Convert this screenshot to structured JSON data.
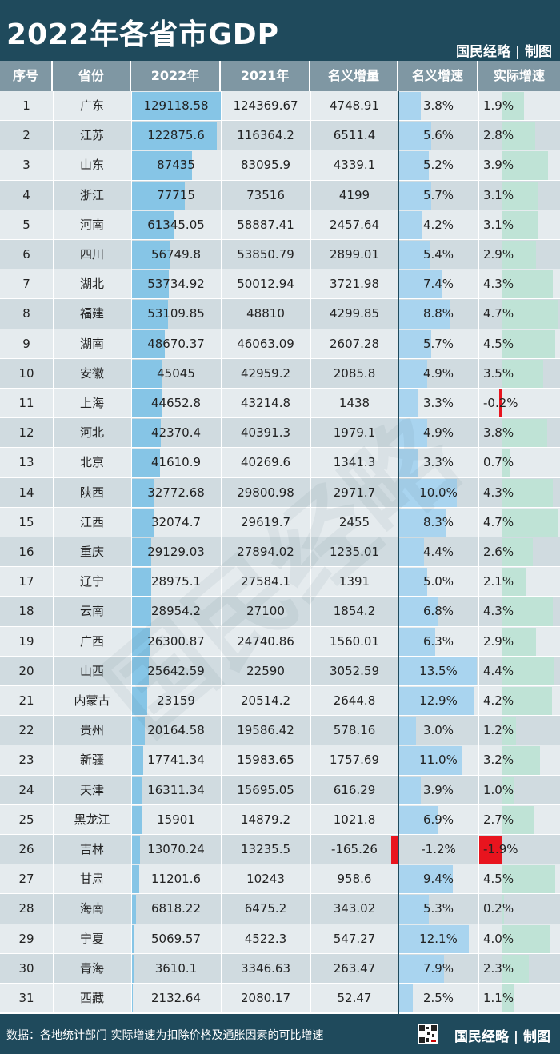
{
  "header": {
    "title": "2022年各省市GDP",
    "brand": "国民经略 | 制图"
  },
  "footer": {
    "source": "数据：各地统计部门 实际增速为扣除价格及通胀因素的可比增速",
    "brand": "国民经略 | 制图"
  },
  "watermark": "国民经略",
  "colors": {
    "header_bg": "#1f4a5c",
    "gdp_bar": "#86c5e6",
    "nominal_bar": "#a9d4ef",
    "real_bar": "#bfe3d6",
    "negative_bar": "#e8141e"
  },
  "chart_data": {
    "type": "table",
    "columns": [
      "序号",
      "省份",
      "2022年",
      "2021年",
      "名义增量",
      "名义增速",
      "实际增速"
    ],
    "rows": [
      {
        "rank": "1",
        "province": "广东",
        "gdp2022": "129118.58",
        "gdp2021": "124369.67",
        "increment": "4748.91",
        "nominal": "3.8%",
        "real": "1.9%"
      },
      {
        "rank": "2",
        "province": "江苏",
        "gdp2022": "122875.6",
        "gdp2021": "116364.2",
        "increment": "6511.4",
        "nominal": "5.6%",
        "real": "2.8%"
      },
      {
        "rank": "3",
        "province": "山东",
        "gdp2022": "87435",
        "gdp2021": "83095.9",
        "increment": "4339.1",
        "nominal": "5.2%",
        "real": "3.9%"
      },
      {
        "rank": "4",
        "province": "浙江",
        "gdp2022": "77715",
        "gdp2021": "73516",
        "increment": "4199",
        "nominal": "5.7%",
        "real": "3.1%"
      },
      {
        "rank": "5",
        "province": "河南",
        "gdp2022": "61345.05",
        "gdp2021": "58887.41",
        "increment": "2457.64",
        "nominal": "4.2%",
        "real": "3.1%"
      },
      {
        "rank": "6",
        "province": "四川",
        "gdp2022": "56749.8",
        "gdp2021": "53850.79",
        "increment": "2899.01",
        "nominal": "5.4%",
        "real": "2.9%"
      },
      {
        "rank": "7",
        "province": "湖北",
        "gdp2022": "53734.92",
        "gdp2021": "50012.94",
        "increment": "3721.98",
        "nominal": "7.4%",
        "real": "4.3%"
      },
      {
        "rank": "8",
        "province": "福建",
        "gdp2022": "53109.85",
        "gdp2021": "48810",
        "increment": "4299.85",
        "nominal": "8.8%",
        "real": "4.7%"
      },
      {
        "rank": "9",
        "province": "湖南",
        "gdp2022": "48670.37",
        "gdp2021": "46063.09",
        "increment": "2607.28",
        "nominal": "5.7%",
        "real": "4.5%"
      },
      {
        "rank": "10",
        "province": "安徽",
        "gdp2022": "45045",
        "gdp2021": "42959.2",
        "increment": "2085.8",
        "nominal": "4.9%",
        "real": "3.5%"
      },
      {
        "rank": "11",
        "province": "上海",
        "gdp2022": "44652.8",
        "gdp2021": "43214.8",
        "increment": "1438",
        "nominal": "3.3%",
        "real": "-0.2%"
      },
      {
        "rank": "12",
        "province": "河北",
        "gdp2022": "42370.4",
        "gdp2021": "40391.3",
        "increment": "1979.1",
        "nominal": "4.9%",
        "real": "3.8%"
      },
      {
        "rank": "13",
        "province": "北京",
        "gdp2022": "41610.9",
        "gdp2021": "40269.6",
        "increment": "1341.3",
        "nominal": "3.3%",
        "real": "0.7%"
      },
      {
        "rank": "14",
        "province": "陕西",
        "gdp2022": "32772.68",
        "gdp2021": "29800.98",
        "increment": "2971.7",
        "nominal": "10.0%",
        "real": "4.3%"
      },
      {
        "rank": "15",
        "province": "江西",
        "gdp2022": "32074.7",
        "gdp2021": "29619.7",
        "increment": "2455",
        "nominal": "8.3%",
        "real": "4.7%"
      },
      {
        "rank": "16",
        "province": "重庆",
        "gdp2022": "29129.03",
        "gdp2021": "27894.02",
        "increment": "1235.01",
        "nominal": "4.4%",
        "real": "2.6%"
      },
      {
        "rank": "17",
        "province": "辽宁",
        "gdp2022": "28975.1",
        "gdp2021": "27584.1",
        "increment": "1391",
        "nominal": "5.0%",
        "real": "2.1%"
      },
      {
        "rank": "18",
        "province": "云南",
        "gdp2022": "28954.2",
        "gdp2021": "27100",
        "increment": "1854.2",
        "nominal": "6.8%",
        "real": "4.3%"
      },
      {
        "rank": "19",
        "province": "广西",
        "gdp2022": "26300.87",
        "gdp2021": "24740.86",
        "increment": "1560.01",
        "nominal": "6.3%",
        "real": "2.9%"
      },
      {
        "rank": "20",
        "province": "山西",
        "gdp2022": "25642.59",
        "gdp2021": "22590",
        "increment": "3052.59",
        "nominal": "13.5%",
        "real": "4.4%"
      },
      {
        "rank": "21",
        "province": "内蒙古",
        "gdp2022": "23159",
        "gdp2021": "20514.2",
        "increment": "2644.8",
        "nominal": "12.9%",
        "real": "4.2%"
      },
      {
        "rank": "22",
        "province": "贵州",
        "gdp2022": "20164.58",
        "gdp2021": "19586.42",
        "increment": "578.16",
        "nominal": "3.0%",
        "real": "1.2%"
      },
      {
        "rank": "23",
        "province": "新疆",
        "gdp2022": "17741.34",
        "gdp2021": "15983.65",
        "increment": "1757.69",
        "nominal": "11.0%",
        "real": "3.2%"
      },
      {
        "rank": "24",
        "province": "天津",
        "gdp2022": "16311.34",
        "gdp2021": "15695.05",
        "increment": "616.29",
        "nominal": "3.9%",
        "real": "1.0%"
      },
      {
        "rank": "25",
        "province": "黑龙江",
        "gdp2022": "15901",
        "gdp2021": "14879.2",
        "increment": "1021.8",
        "nominal": "6.9%",
        "real": "2.7%"
      },
      {
        "rank": "26",
        "province": "吉林",
        "gdp2022": "13070.24",
        "gdp2021": "13235.5",
        "increment": "-165.26",
        "nominal": "-1.2%",
        "real": "-1.9%"
      },
      {
        "rank": "27",
        "province": "甘肃",
        "gdp2022": "11201.6",
        "gdp2021": "10243",
        "increment": "958.6",
        "nominal": "9.4%",
        "real": "4.5%"
      },
      {
        "rank": "28",
        "province": "海南",
        "gdp2022": "6818.22",
        "gdp2021": "6475.2",
        "increment": "343.02",
        "nominal": "5.3%",
        "real": "0.2%"
      },
      {
        "rank": "29",
        "province": "宁夏",
        "gdp2022": "5069.57",
        "gdp2021": "4522.3",
        "increment": "547.27",
        "nominal": "12.1%",
        "real": "4.0%"
      },
      {
        "rank": "30",
        "province": "青海",
        "gdp2022": "3610.1",
        "gdp2021": "3346.63",
        "increment": "263.47",
        "nominal": "7.9%",
        "real": "2.3%"
      },
      {
        "rank": "31",
        "province": "西藏",
        "gdp2022": "2132.64",
        "gdp2021": "2080.17",
        "increment": "52.47",
        "nominal": "2.5%",
        "real": "1.1%"
      }
    ]
  }
}
